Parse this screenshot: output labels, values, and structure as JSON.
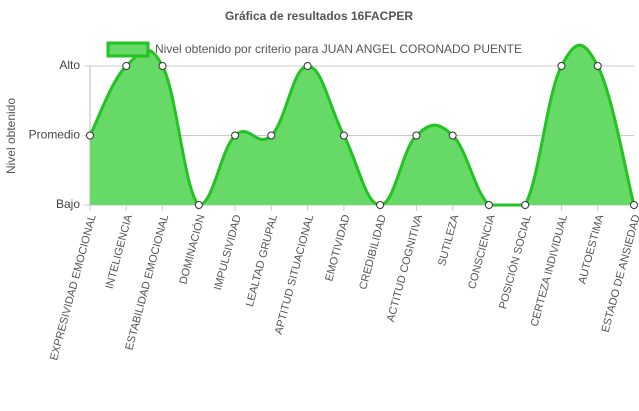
{
  "chart_data": {
    "type": "area",
    "title": "Gráfica de resultados 16FACPER",
    "y_label": "Nivel obtenido",
    "categories": [
      "EXPRESIVIDAD EMOCIONAL",
      "INTELIGENCIA",
      "ESTABILIDAD EMOCIONAL",
      "DOMINACIÓN",
      "IMPULSIVIDAD",
      "LEALTAD GRUPAL",
      "APTITUD SITUACIONAL",
      "EMOTIVIDAD",
      "CREDIBILIDAD",
      "ACTITUD COGNITIVA",
      "SUTILEZA",
      "CONSCIENCIA",
      "POSICIÓN SOCIAL",
      "CERTEZA INDIVIDUAL",
      "AUTOESTIMA",
      "ESTADO DE ANSIEDAD"
    ],
    "series": [
      {
        "name": "Nivel obtenido por criterio para JUAN ANGEL CORONADO PUENTE",
        "color": "#22c322",
        "fill": "#66d966",
        "values": [
          1,
          2,
          2,
          0,
          1,
          1,
          2,
          1,
          0,
          1,
          1,
          0,
          0,
          2,
          2,
          0
        ]
      }
    ],
    "ylim": [
      0,
      2
    ],
    "yticks": [
      {
        "value": 0,
        "label": "Bajo"
      },
      {
        "value": 1,
        "label": "Promedio"
      },
      {
        "value": 2,
        "label": "Alto"
      }
    ],
    "grid": true
  }
}
